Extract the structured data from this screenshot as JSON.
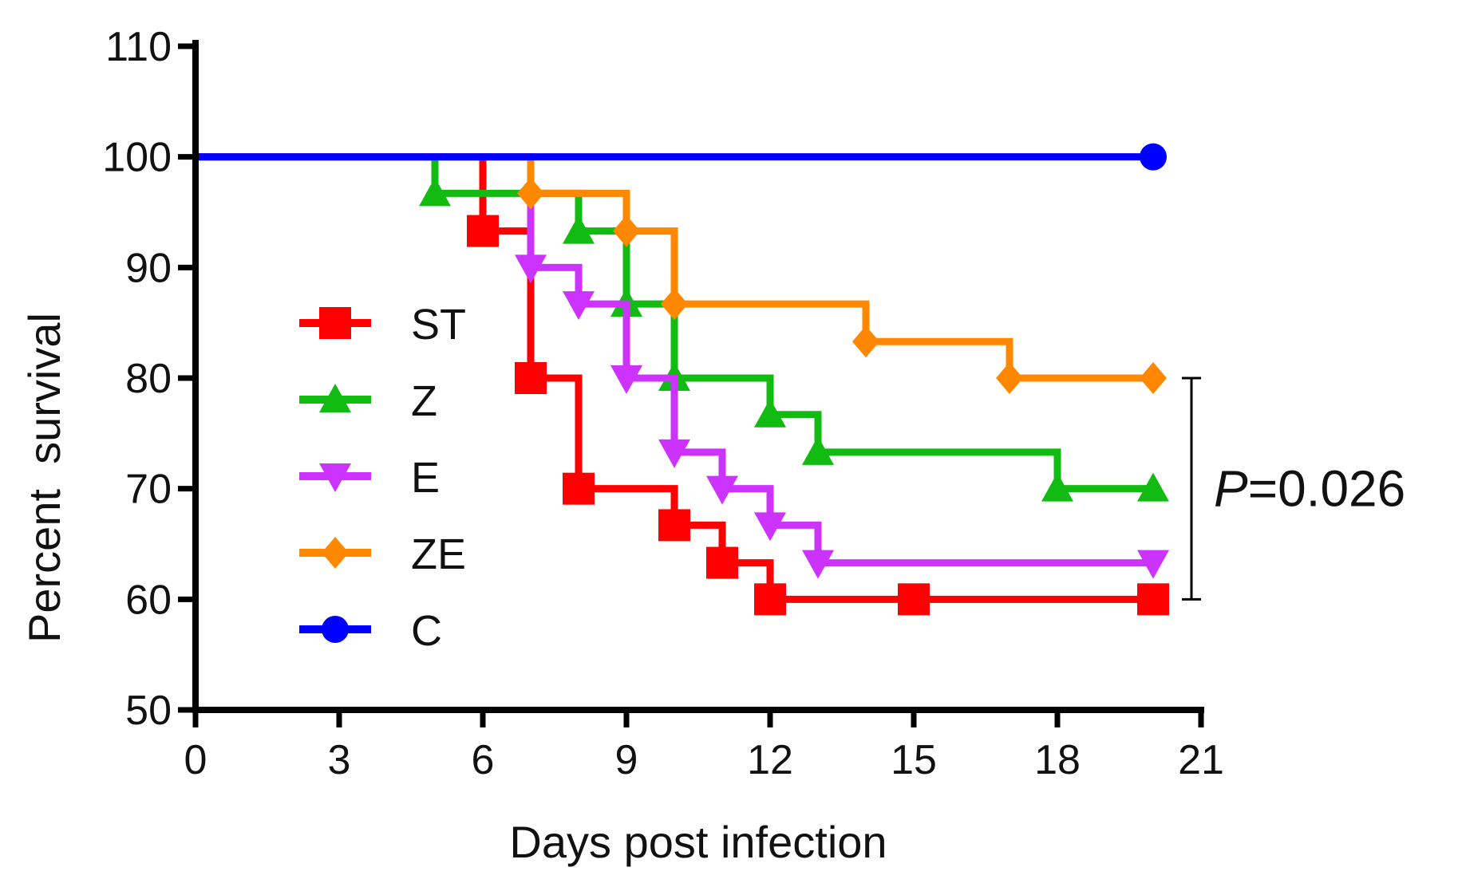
{
  "chart_data": {
    "type": "line",
    "subtype": "kaplan-meier step",
    "xlabel": "Days post infection",
    "ylabel": "Percent  survival",
    "xlim": [
      0,
      21
    ],
    "ylim": [
      50,
      110
    ],
    "xticks": [
      0,
      3,
      6,
      9,
      12,
      15,
      18,
      21
    ],
    "yticks": [
      50,
      60,
      70,
      80,
      90,
      100,
      110
    ],
    "grid": false,
    "legend_position": "center-left",
    "series": [
      {
        "name": "ST",
        "color": "#ff0000",
        "marker": "square",
        "points": [
          [
            0,
            100
          ],
          [
            6,
            93.3
          ],
          [
            7,
            80
          ],
          [
            8,
            70
          ],
          [
            10,
            66.7
          ],
          [
            11,
            63.3
          ],
          [
            12,
            60
          ],
          [
            15,
            60
          ],
          [
            20,
            60
          ]
        ]
      },
      {
        "name": "Z",
        "color": "#11bb11",
        "marker": "triangle-up",
        "points": [
          [
            0,
            100
          ],
          [
            5,
            96.7
          ],
          [
            8,
            93.3
          ],
          [
            9,
            86.7
          ],
          [
            10,
            80
          ],
          [
            12,
            76.7
          ],
          [
            13,
            73.3
          ],
          [
            18,
            70
          ],
          [
            20,
            70
          ]
        ]
      },
      {
        "name": "E",
        "color": "#cc33ff",
        "marker": "triangle-down",
        "points": [
          [
            0,
            100
          ],
          [
            7,
            90
          ],
          [
            8,
            86.7
          ],
          [
            9,
            80
          ],
          [
            10,
            73.3
          ],
          [
            11,
            70
          ],
          [
            12,
            66.7
          ],
          [
            13,
            63.3
          ],
          [
            20,
            63.3
          ]
        ]
      },
      {
        "name": "ZE",
        "color": "#ff8800",
        "marker": "diamond",
        "points": [
          [
            0,
            100
          ],
          [
            7,
            96.7
          ],
          [
            9,
            93.3
          ],
          [
            10,
            86.7
          ],
          [
            14,
            83.3
          ],
          [
            17,
            80
          ],
          [
            20,
            80
          ]
        ]
      },
      {
        "name": "C",
        "color": "#0000ff",
        "marker": "circle",
        "points": [
          [
            0,
            100
          ],
          [
            20,
            100
          ]
        ]
      }
    ],
    "annotation": {
      "prefix": "P",
      "text": "=0.026",
      "bracket_range": [
        60,
        80
      ],
      "bracket_x": 20.8
    }
  }
}
